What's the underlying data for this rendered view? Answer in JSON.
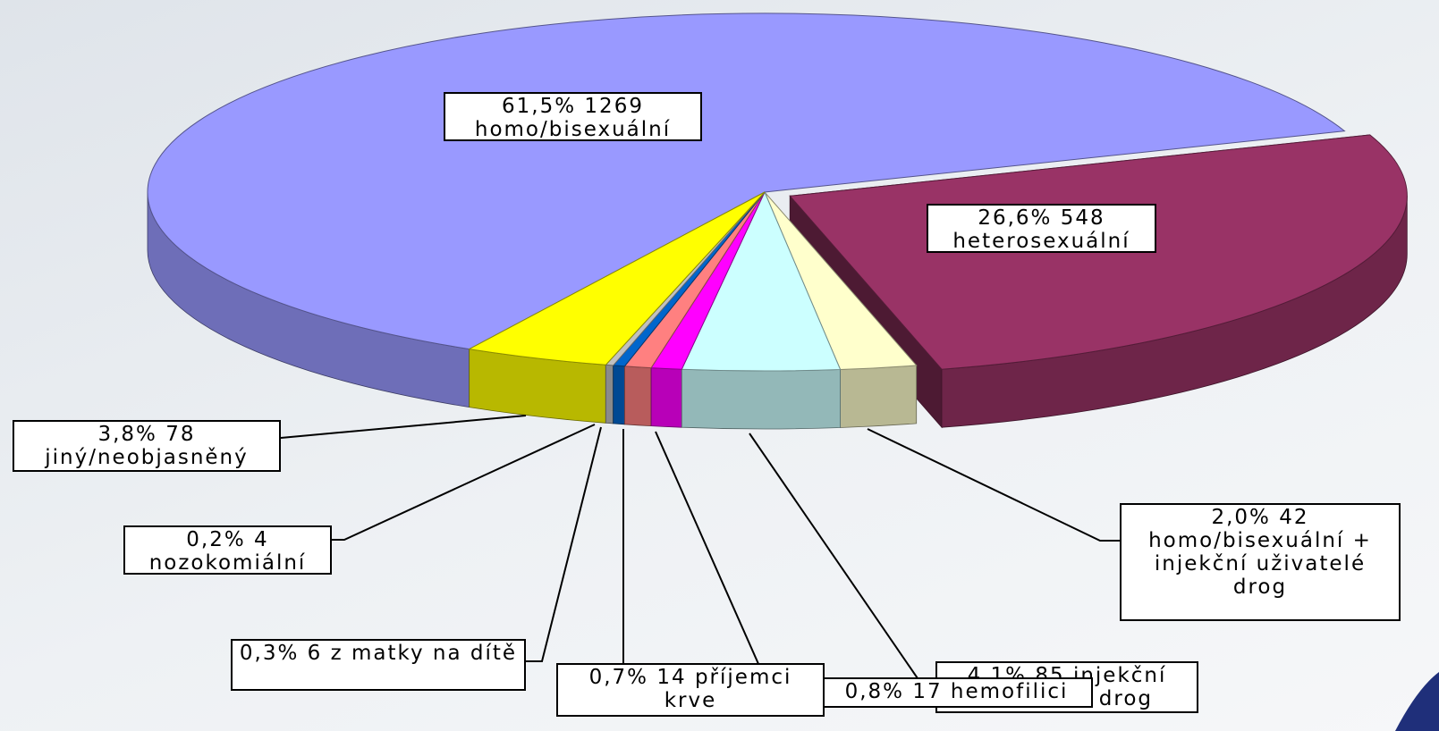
{
  "chart_data": {
    "type": "pie3d",
    "categories": [
      "homo/bisexuální",
      "heterosexuální",
      "homo/bisexuální + injekční uživatelé drog",
      "injekční uživatelé drog",
      "hemofilici",
      "příjemci krve",
      "z matky na dítě",
      "nozokomiální",
      "jiný/neobjasněný"
    ],
    "values": [
      61.5,
      26.6,
      2.0,
      4.1,
      0.8,
      0.7,
      0.3,
      0.2,
      3.8
    ],
    "value_labels": [
      "61,5%",
      "26,6%",
      "2,0%",
      "4,1%",
      "0,8%",
      "0,7%",
      "0,3%",
      "0,2%",
      "3,8%"
    ],
    "counts": [
      1269,
      548,
      42,
      85,
      17,
      14,
      6,
      4,
      78
    ],
    "colors": [
      "#9999ff",
      "#993366",
      "#ffffcc",
      "#ccffff",
      "#ff00ff",
      "#ff8080",
      "#0066cc",
      "#c0c0c0",
      "#ffff00"
    ]
  }
}
